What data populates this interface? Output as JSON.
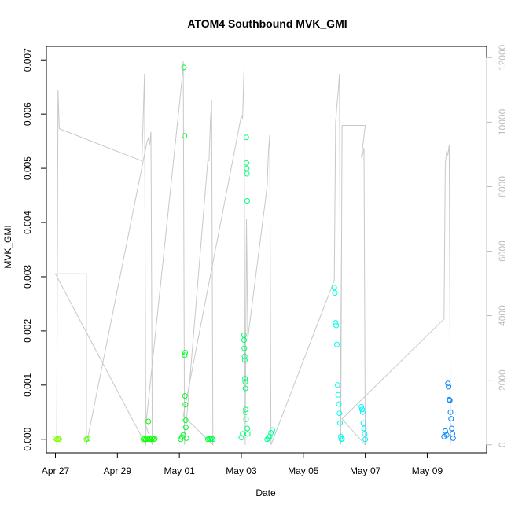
{
  "chart_data": {
    "type": "scatter",
    "title": "ATOM4 Southbound MVK_GMI",
    "xlabel": "Date",
    "ylabel": "MVK_GMI",
    "x_axis_type": "date",
    "xlim": [
      "2016-04-26T17:00",
      "2016-05-10T22:00"
    ],
    "ylim": [
      -0.00025,
      0.00725
    ],
    "y_ticks": [
      0.0,
      0.001,
      0.002,
      0.003,
      0.004,
      0.005,
      0.006,
      0.007
    ],
    "y_tick_labels": [
      "0.000",
      "0.001",
      "0.002",
      "0.003",
      "0.004",
      "0.005",
      "0.006",
      "0.007"
    ],
    "x_ticks": [
      "2016-04-27",
      "2016-04-29",
      "2016-05-01",
      "2016-05-03",
      "2016-05-05",
      "2016-05-07",
      "2016-05-09"
    ],
    "x_tick_labels": [
      "Apr 27",
      "Apr 29",
      "May 01",
      "May 03",
      "May 05",
      "May 07",
      "May 09"
    ],
    "y2lim": [
      -250,
      12350
    ],
    "y2_ticks": [
      0,
      2000,
      4000,
      6000,
      8000,
      10000,
      12000
    ],
    "y2_tick_labels": [
      "0",
      "2000",
      "4000",
      "6000",
      "8000",
      "10000",
      "12000"
    ],
    "grid": false,
    "legend": "none",
    "colors": {
      "axis": "#000000",
      "secondary_axis": "#bdbdbd",
      "secondary_line": "#c8c8c8",
      "points_start": "#80ff00",
      "points_end": "#0080ff"
    },
    "series": [
      {
        "axis": "secondary",
        "style": "line",
        "points": [
          [
            "2016-04-27T01:00",
            0
          ],
          [
            "2016-04-27T02:00",
            11000
          ],
          [
            "2016-04-27T03:00",
            9800
          ],
          [
            "2016-04-29T19:00",
            8800
          ],
          [
            "2016-04-29T21:00",
            11500
          ],
          [
            "2016-04-29T22:00",
            0
          ],
          [
            "2016-04-27T00:00",
            5300
          ],
          [
            "2016-04-28T00:00",
            5300
          ],
          [
            "2016-04-28T00:00",
            0
          ],
          [
            "2016-04-29T23:00",
            9400
          ],
          [
            "2016-04-30T00:00",
            9500
          ],
          [
            "2016-04-30T01:00",
            9300
          ],
          [
            "2016-04-30T02:00",
            9700
          ],
          [
            "2016-04-30T03:00",
            0
          ],
          [
            "2016-04-29T22:00",
            600
          ],
          [
            "2016-05-01T02:00",
            11300
          ],
          [
            "2016-05-01T03:00",
            11900
          ],
          [
            "2016-05-01T04:00",
            0
          ],
          [
            "2016-05-01T22:00",
            8800
          ],
          [
            "2016-05-01T23:00",
            8800
          ],
          [
            "2016-05-02T00:00",
            10000
          ],
          [
            "2016-05-02T01:00",
            10700
          ],
          [
            "2016-05-02T02:00",
            0
          ],
          [
            "2016-05-01T03:00",
            900
          ],
          [
            "2016-05-03T00:00",
            10200
          ],
          [
            "2016-05-03T01:00",
            10100
          ],
          [
            "2016-05-03T02:00",
            11600
          ],
          [
            "2016-05-03T03:00",
            0
          ],
          [
            "2016-05-03T04:00",
            7000
          ],
          [
            "2016-05-03T05:00",
            3300
          ],
          [
            "2016-05-03T20:00",
            8000
          ],
          [
            "2016-05-03T21:00",
            9100
          ],
          [
            "2016-05-03T22:00",
            9600
          ],
          [
            "2016-05-03T23:00",
            0
          ],
          [
            "2016-05-06T00:00",
            5100
          ],
          [
            "2016-05-06T01:00",
            10000
          ],
          [
            "2016-05-06T02:00",
            10500
          ],
          [
            "2016-05-06T03:00",
            10900
          ],
          [
            "2016-05-06T04:00",
            11500
          ],
          [
            "2016-05-06T05:00",
            0
          ],
          [
            "2016-05-06T06:00",
            9900
          ],
          [
            "2016-05-07T00:00",
            9900
          ],
          [
            "2016-05-06T21:00",
            8900
          ],
          [
            "2016-05-06T22:00",
            9000
          ],
          [
            "2016-05-06T23:00",
            9200
          ],
          [
            "2016-05-07T00:00",
            0
          ],
          [
            "2016-05-06T06:00",
            800
          ],
          [
            "2016-05-09T13:00",
            3900
          ],
          [
            "2016-05-09T14:00",
            8700
          ],
          [
            "2016-05-09T15:00",
            9100
          ],
          [
            "2016-05-09T16:00",
            9000
          ],
          [
            "2016-05-09T17:00",
            9300
          ],
          [
            "2016-05-09T18:00",
            0
          ]
        ]
      },
      {
        "axis": "primary",
        "style": "points",
        "points": [
          [
            "2016-04-27T00:00",
            2e-05
          ],
          [
            "2016-04-27T01:00",
            0.0
          ],
          [
            "2016-04-27T02:00",
            1e-05
          ],
          [
            "2016-04-27T03:00",
            0.0
          ],
          [
            "2016-04-28T00:00",
            0.0
          ],
          [
            "2016-04-28T01:00",
            1e-05
          ],
          [
            "2016-04-29T20:00",
            0.0
          ],
          [
            "2016-04-29T21:00",
            1e-05
          ],
          [
            "2016-04-29T22:00",
            0.0
          ],
          [
            "2016-04-29T23:00",
            2e-05
          ],
          [
            "2016-04-30T00:00",
            0.00033
          ],
          [
            "2016-04-29T23:30",
            0.0
          ],
          [
            "2016-04-30T01:00",
            1e-05
          ],
          [
            "2016-04-30T02:00",
            0.0
          ],
          [
            "2016-04-30T03:00",
            2e-05
          ],
          [
            "2016-04-30T04:00",
            0.0
          ],
          [
            "2016-04-30T05:00",
            1e-05
          ],
          [
            "2016-05-01T01:00",
            0.0
          ],
          [
            "2016-05-01T02:00",
            4e-05
          ],
          [
            "2016-05-01T03:00",
            8e-05
          ],
          [
            "2016-05-01T03:30",
            0.00686
          ],
          [
            "2016-05-01T04:00",
            0.0056
          ],
          [
            "2016-05-01T04:30",
            0.0016
          ],
          [
            "2016-05-01T04:10",
            0.00155
          ],
          [
            "2016-05-01T04:20",
            0.0008
          ],
          [
            "2016-05-01T04:40",
            0.00064
          ],
          [
            "2016-05-01T04:50",
            0.00035
          ],
          [
            "2016-05-01T05:00",
            0.00022
          ],
          [
            "2016-05-01T05:30",
            2e-05
          ],
          [
            "2016-05-01T22:00",
            0.0
          ],
          [
            "2016-05-01T23:00",
            1e-05
          ],
          [
            "2016-05-02T00:00",
            0.0
          ],
          [
            "2016-05-02T01:00",
            1e-05
          ],
          [
            "2016-05-02T02:00",
            0.0
          ],
          [
            "2016-05-03T00:00",
            3e-05
          ],
          [
            "2016-05-03T01:00",
            0.0001
          ],
          [
            "2016-05-03T02:00",
            0.00192
          ],
          [
            "2016-05-03T02:10",
            0.00183
          ],
          [
            "2016-05-03T02:20",
            0.00168
          ],
          [
            "2016-05-03T02:30",
            0.00153
          ],
          [
            "2016-05-03T02:40",
            0.00146
          ],
          [
            "2016-05-03T02:50",
            0.00112
          ],
          [
            "2016-05-03T03:00",
            0.00106
          ],
          [
            "2016-05-03T03:10",
            0.00094
          ],
          [
            "2016-05-03T03:20",
            0.00055
          ],
          [
            "2016-05-03T03:30",
            0.0005
          ],
          [
            "2016-05-03T03:40",
            0.00037
          ],
          [
            "2016-05-03T03:50",
            0.00557
          ],
          [
            "2016-05-03T04:00",
            0.0051
          ],
          [
            "2016-05-03T04:10",
            0.005
          ],
          [
            "2016-05-03T04:20",
            0.0049
          ],
          [
            "2016-05-03T04:30",
            0.0044
          ],
          [
            "2016-05-03T04:40",
            0.0002
          ],
          [
            "2016-05-03T05:00",
            0.0001
          ],
          [
            "2016-05-03T20:00",
            0.0
          ],
          [
            "2016-05-03T21:00",
            2e-05
          ],
          [
            "2016-05-03T22:00",
            5e-05
          ],
          [
            "2016-05-03T23:00",
            0.00012
          ],
          [
            "2016-05-04T00:00",
            0.00017
          ],
          [
            "2016-05-06T00:00",
            0.0028
          ],
          [
            "2016-05-06T00:30",
            0.0027
          ],
          [
            "2016-05-06T01:00",
            0.00215
          ],
          [
            "2016-05-06T01:30",
            0.0021
          ],
          [
            "2016-05-06T02:00",
            0.00175
          ],
          [
            "2016-05-06T02:30",
            0.001
          ],
          [
            "2016-05-06T03:00",
            0.00082
          ],
          [
            "2016-05-06T03:30",
            0.00065
          ],
          [
            "2016-05-06T04:00",
            0.00048
          ],
          [
            "2016-05-06T04:30",
            0.0003
          ],
          [
            "2016-05-06T05:00",
            5e-05
          ],
          [
            "2016-05-06T05:30",
            0.0
          ],
          [
            "2016-05-06T06:00",
            1e-05
          ],
          [
            "2016-05-06T21:00",
            0.0006
          ],
          [
            "2016-05-06T21:30",
            0.00055
          ],
          [
            "2016-05-06T22:00",
            0.0005
          ],
          [
            "2016-05-06T22:30",
            0.0003
          ],
          [
            "2016-05-06T23:00",
            0.0002
          ],
          [
            "2016-05-06T23:30",
            0.0001
          ],
          [
            "2016-05-07T00:00",
            0.0
          ],
          [
            "2016-05-09T13:00",
            5e-05
          ],
          [
            "2016-05-09T14:00",
            0.00015
          ],
          [
            "2016-05-09T15:00",
            8e-05
          ],
          [
            "2016-05-09T16:00",
            0.00103
          ],
          [
            "2016-05-09T16:30",
            0.00097
          ],
          [
            "2016-05-09T17:00",
            0.00073
          ],
          [
            "2016-05-09T17:30",
            0.00072
          ],
          [
            "2016-05-09T18:00",
            0.0005
          ],
          [
            "2016-05-09T18:30",
            0.00038
          ],
          [
            "2016-05-09T19:00",
            0.0002
          ],
          [
            "2016-05-09T19:30",
            0.0001
          ],
          [
            "2016-05-09T20:00",
            2e-05
          ]
        ]
      }
    ]
  }
}
